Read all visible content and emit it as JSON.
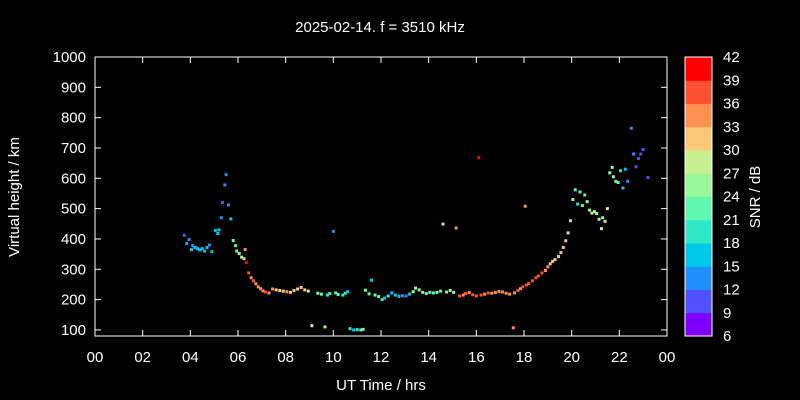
{
  "chart_data": {
    "type": "scatter",
    "title": "2025-02-14. f = 3510 kHz",
    "xlabel": "UT Time / hrs",
    "ylabel": "Virtual height / km",
    "xlim": [
      0,
      24
    ],
    "ylim": [
      80,
      1000
    ],
    "x_ticks": [
      "00",
      "02",
      "04",
      "06",
      "08",
      "10",
      "12",
      "14",
      "16",
      "18",
      "20",
      "22",
      "00"
    ],
    "y_ticks": [
      100,
      200,
      300,
      400,
      500,
      600,
      700,
      800,
      900,
      1000
    ],
    "colorbar": {
      "label": "SNR / dB",
      "range": [
        6,
        42
      ],
      "ticks": [
        6,
        9,
        12,
        15,
        18,
        21,
        24,
        27,
        30,
        33,
        36,
        39,
        42
      ],
      "colors": [
        "#8000ff",
        "#5050ff",
        "#2090ff",
        "#00c8e8",
        "#30e8c8",
        "#60f8b0",
        "#98f898",
        "#c8f090",
        "#f8c878",
        "#ff9050",
        "#ff5030",
        "#ff0000"
      ]
    },
    "points": [
      [
        3.75,
        412,
        11
      ],
      [
        3.85,
        385,
        12
      ],
      [
        3.95,
        398,
        14
      ],
      [
        4.05,
        365,
        15
      ],
      [
        4.1,
        378,
        12
      ],
      [
        4.2,
        372,
        16
      ],
      [
        4.3,
        368,
        17
      ],
      [
        4.4,
        364,
        16
      ],
      [
        4.5,
        368,
        16
      ],
      [
        4.6,
        360,
        15
      ],
      [
        4.7,
        372,
        15
      ],
      [
        4.8,
        380,
        14
      ],
      [
        4.9,
        358,
        15
      ],
      [
        5.05,
        428,
        15
      ],
      [
        5.15,
        418,
        15
      ],
      [
        5.2,
        430,
        17
      ],
      [
        5.3,
        470,
        13
      ],
      [
        5.35,
        520,
        11
      ],
      [
        5.45,
        578,
        13
      ],
      [
        5.5,
        612,
        12
      ],
      [
        5.6,
        512,
        14
      ],
      [
        5.7,
        466,
        15
      ],
      [
        5.8,
        395,
        21
      ],
      [
        5.9,
        378,
        23
      ],
      [
        5.95,
        360,
        22
      ],
      [
        6.05,
        352,
        24
      ],
      [
        6.15,
        340,
        26
      ],
      [
        6.25,
        335,
        30
      ],
      [
        6.3,
        365,
        33
      ],
      [
        6.35,
        322,
        39
      ],
      [
        6.45,
        288,
        36
      ],
      [
        6.55,
        272,
        35
      ],
      [
        6.65,
        262,
        36
      ],
      [
        6.75,
        252,
        34
      ],
      [
        6.85,
        242,
        34
      ],
      [
        6.95,
        236,
        35
      ],
      [
        7.05,
        229,
        34
      ],
      [
        7.15,
        225,
        36
      ],
      [
        7.3,
        222,
        34
      ],
      [
        7.45,
        235,
        33
      ],
      [
        7.6,
        232,
        30
      ],
      [
        7.75,
        230,
        31
      ],
      [
        7.9,
        228,
        32
      ],
      [
        8.05,
        226,
        33
      ],
      [
        8.2,
        224,
        32
      ],
      [
        8.35,
        230,
        31
      ],
      [
        8.5,
        235,
        30
      ],
      [
        8.65,
        240,
        32
      ],
      [
        8.8,
        232,
        30
      ],
      [
        8.95,
        228,
        29
      ],
      [
        9.1,
        114,
        27
      ],
      [
        9.35,
        221,
        24
      ],
      [
        9.5,
        218,
        22
      ],
      [
        9.65,
        110,
        24
      ],
      [
        9.75,
        215,
        20
      ],
      [
        9.85,
        220,
        19
      ],
      [
        10.0,
        425,
        13
      ],
      [
        10.1,
        222,
        21
      ],
      [
        10.2,
        217,
        22
      ],
      [
        10.4,
        215,
        20
      ],
      [
        10.5,
        221,
        19
      ],
      [
        10.6,
        226,
        15
      ],
      [
        10.7,
        104,
        18
      ],
      [
        10.85,
        100,
        16
      ],
      [
        11.0,
        101,
        20
      ],
      [
        11.15,
        100,
        23
      ],
      [
        11.25,
        102,
        25
      ],
      [
        11.35,
        231,
        22
      ],
      [
        11.5,
        219,
        21
      ],
      [
        11.6,
        264,
        15
      ],
      [
        11.75,
        215,
        21
      ],
      [
        11.9,
        210,
        21
      ],
      [
        12.05,
        200,
        18
      ],
      [
        12.15,
        205,
        17
      ],
      [
        12.3,
        212,
        18
      ],
      [
        12.45,
        222,
        17
      ],
      [
        12.6,
        215,
        16
      ],
      [
        12.75,
        211,
        16
      ],
      [
        12.9,
        213,
        14
      ],
      [
        13.05,
        212,
        13
      ],
      [
        13.2,
        218,
        16
      ],
      [
        13.35,
        226,
        25
      ],
      [
        13.45,
        238,
        24
      ],
      [
        13.6,
        232,
        25
      ],
      [
        13.75,
        224,
        24
      ],
      [
        13.9,
        220,
        22
      ],
      [
        14.05,
        224,
        22
      ],
      [
        14.2,
        222,
        22
      ],
      [
        14.35,
        224,
        24
      ],
      [
        14.5,
        228,
        23
      ],
      [
        14.6,
        449,
        24
      ],
      [
        14.75,
        225,
        23
      ],
      [
        14.9,
        230,
        24
      ],
      [
        15.05,
        224,
        26
      ],
      [
        15.15,
        436,
        35
      ],
      [
        15.3,
        212,
        36
      ],
      [
        15.45,
        215,
        35
      ],
      [
        15.55,
        220,
        36
      ],
      [
        15.7,
        223,
        33
      ],
      [
        15.85,
        216,
        36
      ],
      [
        16.0,
        212,
        38
      ],
      [
        16.1,
        668,
        39
      ],
      [
        16.2,
        215,
        36
      ],
      [
        16.35,
        218,
        35
      ],
      [
        16.5,
        222,
        36
      ],
      [
        16.65,
        221,
        34
      ],
      [
        16.8,
        223,
        34
      ],
      [
        16.95,
        227,
        33
      ],
      [
        17.1,
        225,
        35
      ],
      [
        17.25,
        221,
        34
      ],
      [
        17.4,
        218,
        34
      ],
      [
        17.55,
        107,
        34
      ],
      [
        17.6,
        222,
        35
      ],
      [
        17.75,
        230,
        36
      ],
      [
        17.85,
        236,
        35
      ],
      [
        17.95,
        242,
        36
      ],
      [
        18.05,
        508,
        33
      ],
      [
        18.1,
        248,
        36
      ],
      [
        18.2,
        253,
        37
      ],
      [
        18.35,
        262,
        38
      ],
      [
        18.5,
        272,
        38
      ],
      [
        18.6,
        278,
        37
      ],
      [
        18.75,
        288,
        37
      ],
      [
        18.9,
        296,
        35
      ],
      [
        19.0,
        308,
        33
      ],
      [
        19.1,
        318,
        31
      ],
      [
        19.2,
        326,
        31
      ],
      [
        19.3,
        332,
        32
      ],
      [
        19.45,
        342,
        31
      ],
      [
        19.55,
        355,
        30
      ],
      [
        19.65,
        372,
        31
      ],
      [
        19.75,
        394,
        30
      ],
      [
        19.85,
        420,
        28
      ],
      [
        19.95,
        460,
        26
      ],
      [
        20.05,
        530,
        25
      ],
      [
        20.15,
        562,
        22
      ],
      [
        20.25,
        515,
        20
      ],
      [
        20.35,
        555,
        21
      ],
      [
        20.45,
        510,
        22
      ],
      [
        20.55,
        545,
        23
      ],
      [
        20.65,
        523,
        24
      ],
      [
        20.75,
        495,
        25
      ],
      [
        20.85,
        485,
        26
      ],
      [
        20.95,
        490,
        27
      ],
      [
        21.05,
        484,
        28
      ],
      [
        21.15,
        465,
        27
      ],
      [
        21.25,
        434,
        27
      ],
      [
        21.3,
        470,
        26
      ],
      [
        21.4,
        458,
        28
      ],
      [
        21.5,
        500,
        27
      ],
      [
        21.6,
        618,
        26
      ],
      [
        21.7,
        636,
        25
      ],
      [
        21.75,
        605,
        24
      ],
      [
        21.85,
        590,
        23
      ],
      [
        21.95,
        586,
        21
      ],
      [
        22.05,
        625,
        20
      ],
      [
        22.15,
        568,
        17
      ],
      [
        22.25,
        630,
        16
      ],
      [
        22.35,
        590,
        14
      ],
      [
        22.5,
        765,
        13
      ],
      [
        22.6,
        680,
        12
      ],
      [
        22.7,
        638,
        11
      ],
      [
        22.8,
        665,
        11
      ],
      [
        22.9,
        680,
        10
      ],
      [
        23.0,
        695,
        10
      ],
      [
        23.2,
        603,
        9
      ]
    ]
  }
}
